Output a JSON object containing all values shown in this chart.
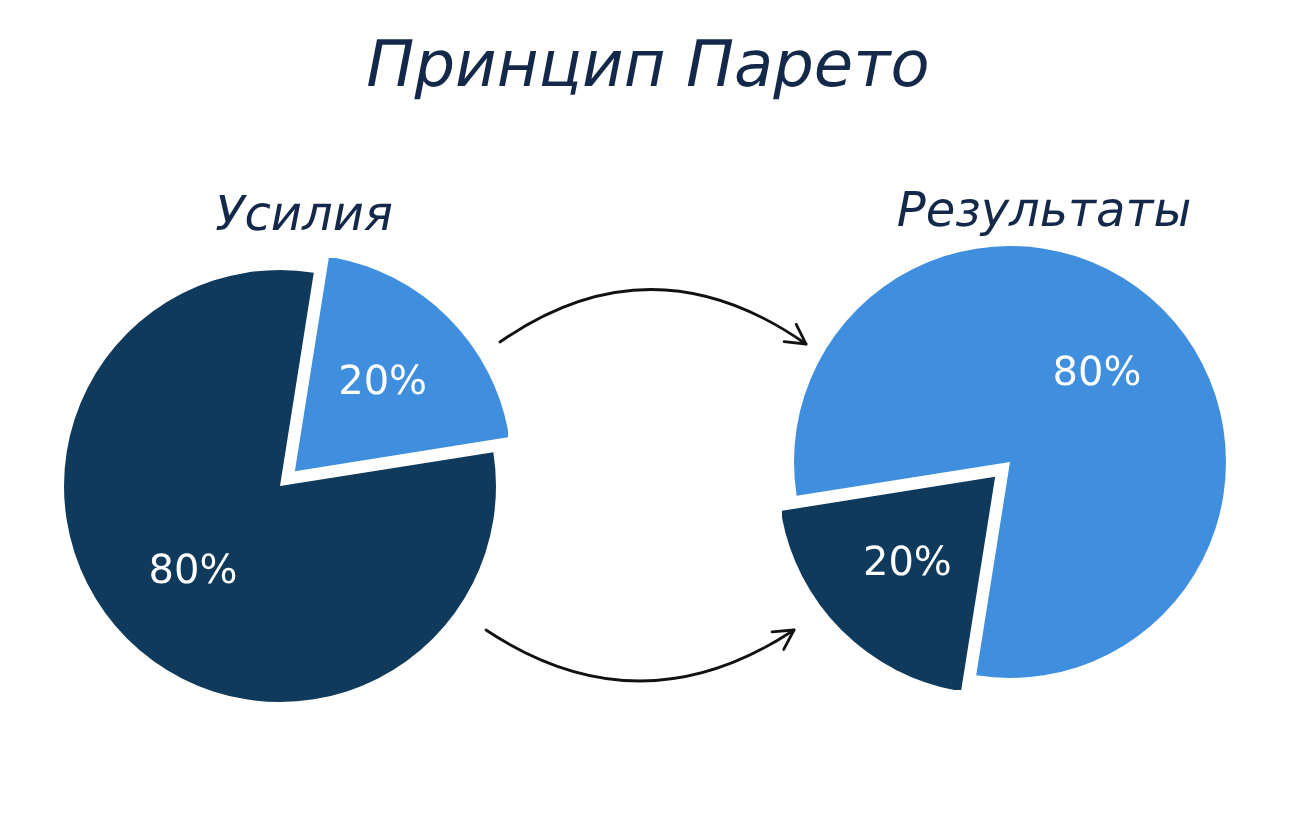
{
  "chart_data": [
    {
      "type": "other",
      "title": "Принцип Парето"
    },
    {
      "type": "pie",
      "title": "Усилия",
      "categories": [
        null,
        null
      ],
      "values": [
        20,
        80
      ],
      "colors": [
        "#3f8fde",
        "#103a5c"
      ],
      "value_labels": [
        "20%",
        "80%"
      ]
    },
    {
      "type": "pie",
      "title": "Результаты",
      "categories": [
        null,
        null
      ],
      "values": [
        80,
        20
      ],
      "colors": [
        "#3f8fde",
        "#103a5c"
      ],
      "value_labels": [
        "80%",
        "20%"
      ]
    }
  ]
}
